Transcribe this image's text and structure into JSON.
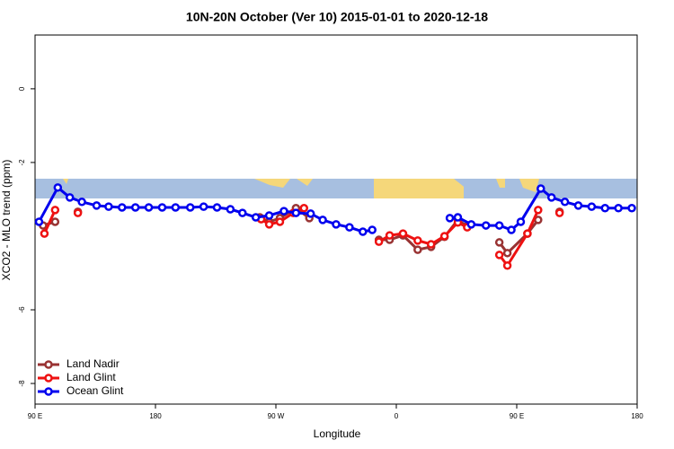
{
  "chart_data": {
    "type": "line",
    "title": "10N-20N October (Ver 10)   2015-01-01 to 2020-12-18",
    "x_label": "Longitude",
    "y_label": "XCO2 - MLO trend (ppm)",
    "xlim": [
      90,
      540
    ],
    "ylim": [
      -8.56,
      1.46
    ],
    "xticks": [
      {
        "value": 90,
        "label": "90 E"
      },
      180,
      {
        "value": 270,
        "label": "90 W"
      },
      {
        "value": 360,
        "label": "0"
      },
      {
        "value": 450,
        "label": "90 E"
      },
      {
        "value": 540,
        "label": "180"
      }
    ],
    "yticks": [
      -8,
      -6,
      -2,
      0
    ],
    "legend": "bottomleft",
    "series": [
      {
        "name": "Land Nadir",
        "color": "#993333",
        "x": [
          96,
          105,
          114,
          122,
          190,
          258,
          265,
          273,
          285,
          295,
          318,
          347,
          355,
          365,
          376,
          386,
          396,
          406,
          413,
          425,
          437,
          443,
          458,
          466,
          474,
          482
        ],
        "values": [
          -3.71,
          -3.61,
          null,
          -3.34,
          null,
          -3.49,
          -3.61,
          -3.51,
          -3.24,
          -3.51,
          null,
          -4.1,
          -4.1,
          -3.98,
          -4.37,
          -4.29,
          -4.02,
          -3.56,
          -3.73,
          null,
          -4.17,
          -4.46,
          -3.93,
          -3.56,
          null,
          -3.34
        ]
      },
      {
        "name": "Land Glint",
        "color": "#ee1111",
        "x": [
          97,
          105,
          114,
          122,
          190,
          259,
          265,
          273,
          283,
          291,
          318,
          347,
          355,
          365,
          376,
          386,
          396,
          406,
          413,
          425,
          437,
          443,
          458,
          466,
          474,
          482
        ],
        "values": [
          -3.93,
          -3.29,
          null,
          -3.37,
          null,
          -3.54,
          -3.68,
          -3.61,
          -3.37,
          -3.24,
          null,
          -4.15,
          -3.98,
          -3.93,
          -4.12,
          -4.22,
          -4.0,
          -3.63,
          -3.76,
          null,
          -4.51,
          -4.8,
          -3.93,
          -3.29,
          null,
          -3.37
        ]
      },
      {
        "name": "Ocean Glint",
        "color": "#0000ee",
        "x": [
          93,
          107,
          116,
          125,
          136,
          145,
          155,
          165,
          175,
          185,
          195,
          206,
          216,
          226,
          236,
          245,
          255,
          265,
          276,
          285,
          296,
          305,
          315,
          325,
          335,
          342,
          370,
          400,
          406,
          416,
          427,
          437,
          446,
          453,
          468,
          476,
          486,
          496,
          506,
          516,
          526,
          536
        ],
        "values": [
          -3.61,
          -2.68,
          -2.95,
          -3.07,
          -3.17,
          -3.2,
          -3.22,
          -3.22,
          -3.22,
          -3.22,
          -3.22,
          -3.22,
          -3.2,
          -3.22,
          -3.27,
          -3.37,
          -3.49,
          -3.44,
          -3.32,
          -3.37,
          -3.39,
          -3.56,
          -3.68,
          -3.76,
          -3.88,
          -3.83,
          null,
          -3.51,
          -3.49,
          -3.68,
          -3.71,
          -3.71,
          -3.83,
          -3.61,
          -2.71,
          -2.95,
          -3.07,
          -3.17,
          -3.2,
          -3.24,
          -3.24,
          -3.24
        ]
      }
    ]
  }
}
